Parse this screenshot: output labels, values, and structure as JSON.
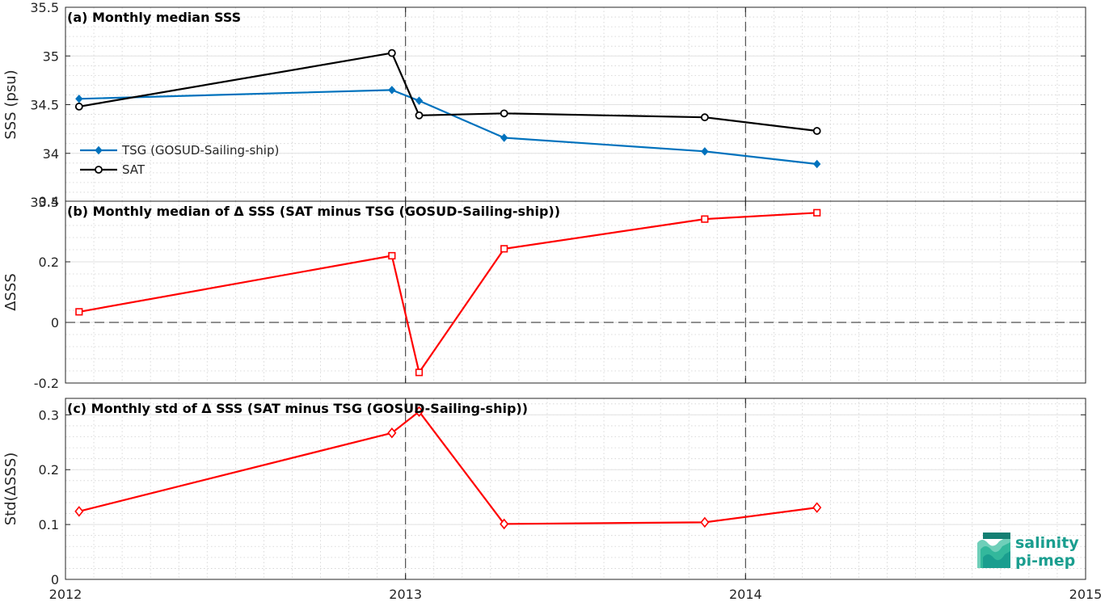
{
  "chart_data": [
    {
      "type": "line",
      "title": "(a) Monthly median SSS",
      "ylabel": "SSS (psu)",
      "xlim": [
        2012,
        2015
      ],
      "ylim": [
        33.5,
        35.5
      ],
      "yticks": [
        33.5,
        34,
        34.5,
        35,
        35.5
      ],
      "ytick_labels": [
        "33.5",
        "34",
        "34.5",
        "35",
        "35.5"
      ],
      "legend": "bottom-left",
      "series": [
        {
          "name": "TSG (GOSUD-Sailing-ship)",
          "color": "#0072bd",
          "marker": "diamond-filled",
          "x": [
            2012.04,
            2012.96,
            2013.04,
            2013.29,
            2013.88,
            2014.21
          ],
          "y": [
            34.56,
            34.65,
            34.54,
            34.16,
            34.02,
            33.89
          ]
        },
        {
          "name": "SAT",
          "color": "#000000",
          "marker": "circle-open",
          "x": [
            2012.04,
            2012.96,
            2013.04,
            2013.29,
            2013.88,
            2014.21
          ],
          "y": [
            34.48,
            35.03,
            34.39,
            34.41,
            34.37,
            34.23
          ]
        }
      ]
    },
    {
      "type": "line",
      "title": "(b) Monthly median of Δ SSS (SAT minus TSG (GOSUD-Sailing-ship))",
      "ylabel": "ΔSSS",
      "xlim": [
        2012,
        2015
      ],
      "ylim": [
        -0.2,
        0.4
      ],
      "yticks": [
        -0.2,
        0,
        0.2,
        0.4
      ],
      "ytick_labels": [
        "-0.2",
        "0",
        "0.2",
        "0.4"
      ],
      "zero_line": true,
      "series": [
        {
          "color": "#ff0000",
          "marker": "square-open",
          "x": [
            2012.04,
            2012.96,
            2013.04,
            2013.29,
            2013.88,
            2014.21
          ],
          "y": [
            0.035,
            0.22,
            -0.165,
            0.243,
            0.341,
            0.362
          ]
        }
      ]
    },
    {
      "type": "line",
      "title": "(c) Monthly std of Δ SSS (SAT minus TSG (GOSUD-Sailing-ship))",
      "ylabel": "Std(ΔSSS)",
      "xlim": [
        2012,
        2015
      ],
      "ylim": [
        0,
        0.33
      ],
      "yticks": [
        0,
        0.1,
        0.2,
        0.3
      ],
      "ytick_labels": [
        "0",
        "0.1",
        "0.2",
        "0.3"
      ],
      "series": [
        {
          "color": "#ff0000",
          "marker": "diamond-open",
          "x": [
            2012.04,
            2012.96,
            2013.04,
            2013.29,
            2013.88,
            2014.21
          ],
          "y": [
            0.124,
            0.267,
            0.306,
            0.101,
            0.104,
            0.131
          ]
        }
      ]
    }
  ],
  "x_axis": {
    "ticks": [
      2012,
      2013,
      2014,
      2015
    ],
    "tick_labels": [
      "2012",
      "2013",
      "2014",
      "2015"
    ],
    "year_dividers": [
      2013,
      2014
    ]
  },
  "logo": {
    "line1": "salinity",
    "line2": "pi-mep",
    "color": "#1a9e8f"
  }
}
